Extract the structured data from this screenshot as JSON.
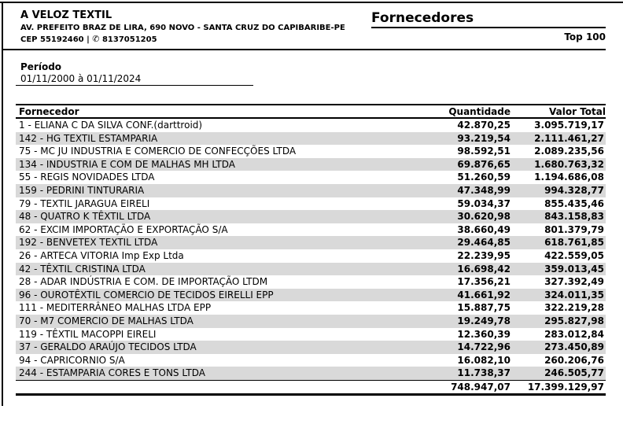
{
  "company": {
    "name": "A VELOZ TEXTIL",
    "address_line": "AV. PREFEITO BRAZ DE LIRA, 690 NOVO - SANTA CRUZ DO CAPIBARIBE-PE",
    "cep_prefix": "CEP 55192460 | ",
    "phone_icon_glyph": "✆",
    "phone_number": " 8137051205"
  },
  "report": {
    "title": "Fornecedores",
    "badge": "Top 100"
  },
  "period": {
    "label": "Período",
    "value": "01/11/2000 à 01/11/2024"
  },
  "table": {
    "columns": [
      "Fornecedor",
      "Quantidade",
      "Valor Total"
    ],
    "rows": [
      {
        "name": "1 - ELIANA C DA SILVA CONF.(darttroid)",
        "quantidade": "42.870,25",
        "valor_total": "3.095.719,17"
      },
      {
        "name": "142 - HG TEXTIL ESTAMPARIA",
        "quantidade": "93.219,54",
        "valor_total": "2.111.461,27"
      },
      {
        "name": "75 - MC JU INDUSTRIA E COMERCIO DE CONFECÇÕES LTDA",
        "quantidade": "98.592,51",
        "valor_total": "2.089.235,56"
      },
      {
        "name": "134 - INDUSTRIA E COM DE MALHAS MH LTDA",
        "quantidade": "69.876,65",
        "valor_total": "1.680.763,32"
      },
      {
        "name": "55 - REGIS NOVIDADES LTDA",
        "quantidade": "51.260,59",
        "valor_total": "1.194.686,08"
      },
      {
        "name": "159 - PEDRINI TINTURARIA",
        "quantidade": "47.348,99",
        "valor_total": "994.328,77"
      },
      {
        "name": "79 - TEXTIL JARAGUA EIRELI",
        "quantidade": "59.034,37",
        "valor_total": "855.435,46"
      },
      {
        "name": "48 - QUATRO K TÊXTIL LTDA",
        "quantidade": "30.620,98",
        "valor_total": "843.158,83"
      },
      {
        "name": "62 - EXCIM IMPORTAÇÃO E EXPORTAÇÃO S/A",
        "quantidade": "38.660,49",
        "valor_total": "801.379,79"
      },
      {
        "name": "192 - BENVETEX TEXTIL LTDA",
        "quantidade": "29.464,85",
        "valor_total": "618.761,85"
      },
      {
        "name": "26 - ARTECA VITORIA Imp Exp Ltda",
        "quantidade": "22.239,95",
        "valor_total": "422.559,05"
      },
      {
        "name": "42 - TÊXTIL CRISTINA LTDA",
        "quantidade": "16.698,42",
        "valor_total": "359.013,45"
      },
      {
        "name": "28 - ADAR INDÚSTRIA E COM. DE IMPORTAÇÃO LTDM",
        "quantidade": "17.356,21",
        "valor_total": "327.392,49"
      },
      {
        "name": "96 - OUROTÊXTIL COMERCIO DE TECIDOS EIRELLI EPP",
        "quantidade": "41.661,92",
        "valor_total": "324.011,35"
      },
      {
        "name": "111 - MEDITERRÂNEO MALHAS LTDA EPP",
        "quantidade": "15.887,75",
        "valor_total": "322.219,28"
      },
      {
        "name": "70 - M7 COMERCIO DE MALHAS LTDA",
        "quantidade": "19.249,78",
        "valor_total": "295.827,98"
      },
      {
        "name": "119 - TÊXTIL MACOPPI EIRELI",
        "quantidade": "12.360,39",
        "valor_total": "283.012,84"
      },
      {
        "name": "37 - GERALDO ARAÚJO TECIDOS LTDA",
        "quantidade": "14.722,96",
        "valor_total": "273.450,89"
      },
      {
        "name": "94 - CAPRICORNIO S/A",
        "quantidade": "16.082,10",
        "valor_total": "260.206,76"
      },
      {
        "name": "244 - ESTAMPARIA CORES E TONS LTDA",
        "quantidade": "11.738,37",
        "valor_total": "246.505,77"
      }
    ],
    "total": {
      "quantidade": "748.947,07",
      "valor_total": "17.399.129,97"
    }
  },
  "colors": {
    "stripe": "#d9d9d9",
    "rule": "#000000"
  }
}
